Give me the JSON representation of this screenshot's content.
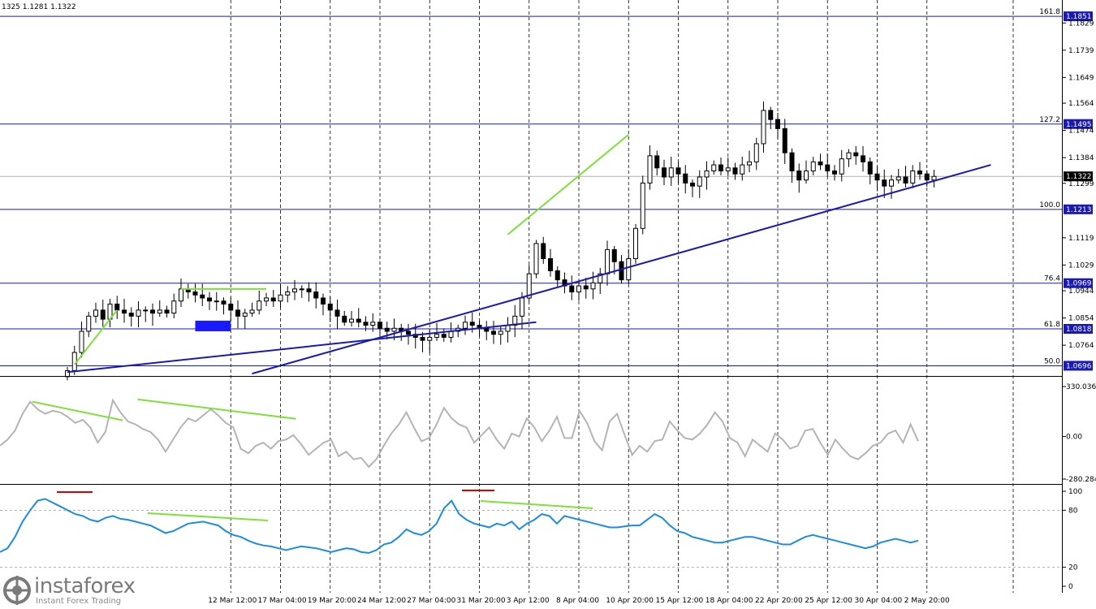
{
  "header": {
    "ohlc_text": "1325 1.1281 1.1322"
  },
  "watermark": {
    "brand": "instaforex",
    "tagline": "Instant Forex Trading",
    "icon": "instaforex-logo-icon"
  },
  "colors": {
    "candle": "#000000",
    "trendline": "#1a1ab0",
    "fib": "#1a1ab0",
    "divergence": "#7ee03a",
    "divergence_red": "#e00000",
    "cci": "#b4b4b4",
    "rsi": "#1c8ce3",
    "box": "#1a1aff"
  },
  "chart_data": [
    {
      "type": "candlestick",
      "pair": "EUR/USD",
      "ylim": [
        1.0665,
        1.1905
      ],
      "x_labels": [
        {
          "label": "12 Mar 12:00",
          "index": 23
        },
        {
          "label": "17 Mar 04:00",
          "index": 30
        },
        {
          "label": "19 Mar 20:00",
          "index": 37
        },
        {
          "label": "24 Mar 12:00",
          "index": 44
        },
        {
          "label": "27 Mar 04:00",
          "index": 51
        },
        {
          "label": "31 Mar 20:00",
          "index": 58
        },
        {
          "label": "3 Apr 12:00",
          "index": 65
        },
        {
          "label": "8 Apr 04:00",
          "index": 72
        },
        {
          "label": "10 Apr 20:00",
          "index": 79
        },
        {
          "label": "15 Apr 12:00",
          "index": 86
        },
        {
          "label": "18 Apr 04:00",
          "index": 93
        },
        {
          "label": "22 Apr 20:00",
          "index": 100
        },
        {
          "label": "25 Apr 12:00",
          "index": 107
        },
        {
          "label": "30 Apr 04:00",
          "index": 114
        },
        {
          "label": "2 May 20:00",
          "index": 121
        }
      ],
      "y_ticks": [
        1.1829,
        1.1739,
        1.1649,
        1.1564,
        1.1474,
        1.1384,
        1.1299,
        1.1119,
        1.1029,
        1.0944,
        1.0854,
        1.0764
      ],
      "current_price": 1.1322,
      "fib_levels": [
        {
          "ratio": "161.8",
          "price": 1.1851
        },
        {
          "ratio": "127.2",
          "price": 1.1495
        },
        {
          "ratio": "100.0",
          "price": 1.1213
        },
        {
          "ratio": "76.4",
          "price": 1.0969
        },
        {
          "ratio": "61.8",
          "price": 1.0818
        },
        {
          "ratio": "50.0",
          "price": 1.0696
        }
      ],
      "closes": [
        1.068,
        1.074,
        1.081,
        1.086,
        1.088,
        1.085,
        1.09,
        1.088,
        1.087,
        1.086,
        1.088,
        1.088,
        1.087,
        1.088,
        1.087,
        1.091,
        1.095,
        1.094,
        1.093,
        1.092,
        1.091,
        1.091,
        1.09,
        1.088,
        1.086,
        1.087,
        1.088,
        1.091,
        1.092,
        1.091,
        1.093,
        1.094,
        1.095,
        1.095,
        1.094,
        1.092,
        1.09,
        1.088,
        1.086,
        1.084,
        1.085,
        1.084,
        1.083,
        1.084,
        1.082,
        1.081,
        1.082,
        1.081,
        1.08,
        1.079,
        1.078,
        1.079,
        1.08,
        1.079,
        1.081,
        1.082,
        1.084,
        1.083,
        1.082,
        1.081,
        1.08,
        1.081,
        1.083,
        1.086,
        1.092,
        1.1,
        1.11,
        1.105,
        1.101,
        1.098,
        1.096,
        1.094,
        1.096,
        1.095,
        1.097,
        1.1,
        1.108,
        1.104,
        1.098,
        1.105,
        1.115,
        1.13,
        1.139,
        1.135,
        1.132,
        1.135,
        1.133,
        1.13,
        1.129,
        1.132,
        1.134,
        1.136,
        1.134,
        1.135,
        1.133,
        1.136,
        1.137,
        1.143,
        1.154,
        1.151,
        1.148,
        1.14,
        1.134,
        1.131,
        1.134,
        1.137,
        1.136,
        1.134,
        1.133,
        1.138,
        1.14,
        1.139,
        1.137,
        1.133,
        1.131,
        1.129,
        1.131,
        1.132,
        1.13,
        1.134,
        1.133,
        1.131,
        1.1322
      ],
      "trendlines": [
        {
          "from": [
            0,
            1.0675
          ],
          "to": [
            66,
            1.084
          ]
        },
        {
          "from": [
            26,
            1.067
          ],
          "to": [
            130,
            1.136
          ]
        }
      ],
      "divergence_lines": [
        {
          "from": [
            1,
            1.07
          ],
          "to": [
            7,
            1.088
          ]
        },
        {
          "from": [
            16,
            1.095
          ],
          "to": [
            28,
            1.095
          ]
        },
        {
          "from": [
            62,
            1.113
          ],
          "to": [
            79,
            1.146
          ]
        }
      ],
      "zone_box": {
        "from": [
          18,
          1.0845
        ],
        "to": [
          23,
          1.081
        ]
      }
    },
    {
      "type": "line",
      "indicator": "CCI",
      "y_ticks": [
        330.0361,
        0.0,
        -280.2849
      ],
      "ylim": [
        -280.2849,
        330.0361
      ],
      "values": [
        -60,
        -20,
        40,
        150,
        230,
        180,
        150,
        170,
        160,
        130,
        90,
        110,
        60,
        -40,
        30,
        240,
        160,
        100,
        80,
        50,
        30,
        -20,
        -100,
        -20,
        60,
        120,
        100,
        140,
        180,
        140,
        90,
        60,
        -80,
        -110,
        -60,
        -40,
        -80,
        -30,
        -20,
        10,
        -50,
        -120,
        -80,
        -40,
        -20,
        -130,
        -100,
        -150,
        -140,
        -200,
        -150,
        -60,
        20,
        80,
        160,
        60,
        -30,
        -10,
        80,
        190,
        120,
        80,
        60,
        -40,
        10,
        60,
        -20,
        -80,
        20,
        0,
        120,
        60,
        -30,
        40,
        130,
        -10,
        -10,
        170,
        90,
        -30,
        -90,
        100,
        150,
        10,
        -120,
        -60,
        -100,
        -30,
        -20,
        100,
        40,
        -10,
        -20,
        20,
        80,
        160,
        100,
        -10,
        -40,
        -130,
        -20,
        -60,
        -100,
        20,
        -20,
        -80,
        -60,
        40,
        50,
        -40,
        -120,
        -20,
        -80,
        -130,
        -150,
        -110,
        -60,
        -40,
        20,
        40,
        -40,
        80,
        -30
      ]
    },
    {
      "type": "line",
      "indicator": "RSI",
      "y_ticks": [
        100,
        80,
        20,
        0
      ],
      "ylim": [
        0,
        100
      ],
      "levels": [
        80,
        20
      ],
      "values": [
        36,
        40,
        52,
        68,
        80,
        90,
        92,
        88,
        84,
        80,
        76,
        74,
        70,
        68,
        72,
        74,
        71,
        70,
        68,
        66,
        64,
        60,
        56,
        58,
        62,
        66,
        67,
        68,
        66,
        64,
        58,
        54,
        52,
        48,
        45,
        43,
        42,
        40,
        38,
        40,
        42,
        41,
        40,
        38,
        36,
        38,
        40,
        39,
        36,
        35,
        38,
        44,
        46,
        52,
        60,
        56,
        54,
        58,
        66,
        82,
        90,
        76,
        70,
        66,
        64,
        62,
        66,
        64,
        68,
        60,
        66,
        70,
        76,
        74,
        66,
        74,
        72,
        70,
        68,
        66,
        64,
        62,
        62,
        63,
        64,
        64,
        70,
        76,
        72,
        64,
        58,
        56,
        52,
        50,
        48,
        46,
        46,
        48,
        50,
        52,
        52,
        50,
        48,
        46,
        44,
        44,
        48,
        52,
        54,
        52,
        50,
        48,
        46,
        44,
        42,
        40,
        42,
        46,
        48,
        50,
        48,
        46,
        48
      ]
    }
  ]
}
